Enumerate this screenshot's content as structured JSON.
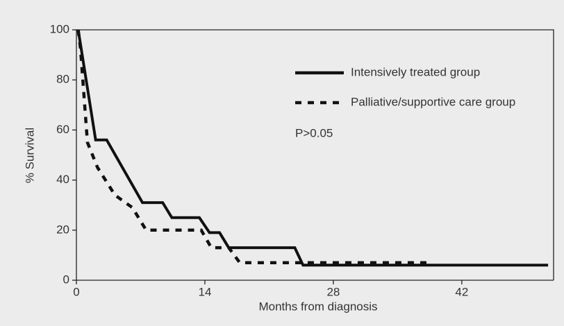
{
  "chart_data": {
    "type": "line",
    "x_label": "Months from diagnosis",
    "y_label": "% Survival",
    "annotation": "P>0.05",
    "legend": "upper right",
    "xlim": [
      0,
      52
    ],
    "ylim": [
      0,
      100
    ],
    "xticks": [
      0,
      14,
      28,
      42
    ],
    "yticks": [
      0,
      20,
      40,
      60,
      80,
      100
    ],
    "series": [
      {
        "name": "Intensively treated group",
        "color": "#111111",
        "line_style": "solid",
        "x": [
          0.2,
          2.1,
          3.3,
          7.2,
          9.4,
          10.4,
          13.4,
          14.5,
          15.6,
          16.6,
          23.8,
          24.7,
          51.4
        ],
        "values": [
          100,
          56,
          56,
          31,
          31,
          25,
          25,
          19,
          19,
          13,
          13,
          6,
          6
        ]
      },
      {
        "name": "Palliative/supportive care group",
        "color": "#111111",
        "line_style": "dashed",
        "x": [
          0.2,
          0.45,
          1.2,
          2.3,
          4.2,
          6.1,
          7.6,
          13.6,
          14.7,
          16.6,
          17.8,
          38.2
        ],
        "values": [
          100,
          92.5,
          55,
          45,
          34,
          29,
          20,
          20,
          13,
          13,
          7,
          7
        ]
      }
    ]
  }
}
